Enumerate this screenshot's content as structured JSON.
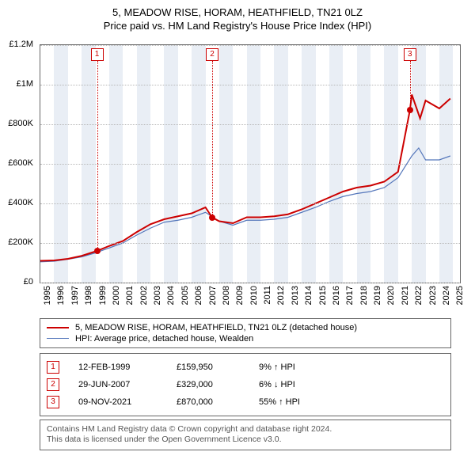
{
  "title": {
    "line1": "5, MEADOW RISE, HORAM, HEATHFIELD, TN21 0LZ",
    "line2": "Price paid vs. HM Land Registry's House Price Index (HPI)",
    "fontsize": 13
  },
  "chart": {
    "type": "line",
    "background_color": "#ffffff",
    "grid_color": "#b8b8b8",
    "band_color": "#e9eef5",
    "ylim": [
      0,
      1200000
    ],
    "ytick_step": 200000,
    "yticks": [
      {
        "v": 0,
        "label": "£0"
      },
      {
        "v": 200000,
        "label": "£200K"
      },
      {
        "v": 400000,
        "label": "£400K"
      },
      {
        "v": 600000,
        "label": "£600K"
      },
      {
        "v": 800000,
        "label": "£800K"
      },
      {
        "v": 1000000,
        "label": "£1M"
      },
      {
        "v": 1200000,
        "label": "£1.2M"
      }
    ],
    "xlim": [
      1995,
      2025.5
    ],
    "xticks": [
      1995,
      1996,
      1997,
      1998,
      1999,
      2000,
      2001,
      2002,
      2003,
      2004,
      2005,
      2006,
      2007,
      2008,
      2009,
      2010,
      2011,
      2012,
      2013,
      2014,
      2015,
      2016,
      2017,
      2018,
      2019,
      2020,
      2021,
      2022,
      2023,
      2024,
      2025
    ],
    "series": [
      {
        "name": "property",
        "label": "5, MEADOW RISE, HORAM, HEATHFIELD, TN21 0LZ (detached house)",
        "color": "#cc0000",
        "width": 2,
        "points": [
          [
            1995,
            110000
          ],
          [
            1996,
            112000
          ],
          [
            1997,
            120000
          ],
          [
            1998,
            135000
          ],
          [
            1999.12,
            159950
          ],
          [
            2000,
            185000
          ],
          [
            2001,
            210000
          ],
          [
            2002,
            255000
          ],
          [
            2003,
            295000
          ],
          [
            2004,
            320000
          ],
          [
            2005,
            335000
          ],
          [
            2006,
            350000
          ],
          [
            2007,
            380000
          ],
          [
            2007.49,
            329000
          ],
          [
            2008,
            310000
          ],
          [
            2009,
            300000
          ],
          [
            2010,
            330000
          ],
          [
            2011,
            330000
          ],
          [
            2012,
            335000
          ],
          [
            2013,
            345000
          ],
          [
            2014,
            370000
          ],
          [
            2015,
            400000
          ],
          [
            2016,
            430000
          ],
          [
            2017,
            460000
          ],
          [
            2018,
            480000
          ],
          [
            2019,
            490000
          ],
          [
            2020,
            510000
          ],
          [
            2021,
            560000
          ],
          [
            2021.86,
            870000
          ],
          [
            2022,
            950000
          ],
          [
            2022.6,
            830000
          ],
          [
            2023,
            920000
          ],
          [
            2024,
            880000
          ],
          [
            2024.8,
            930000
          ]
        ]
      },
      {
        "name": "hpi",
        "label": "HPI: Average price, detached house, Wealden",
        "color": "#5577bb",
        "width": 1.2,
        "points": [
          [
            1995,
            105000
          ],
          [
            1996,
            108000
          ],
          [
            1997,
            118000
          ],
          [
            1998,
            130000
          ],
          [
            1999,
            150000
          ],
          [
            2000,
            175000
          ],
          [
            2001,
            200000
          ],
          [
            2002,
            240000
          ],
          [
            2003,
            275000
          ],
          [
            2004,
            305000
          ],
          [
            2005,
            315000
          ],
          [
            2006,
            330000
          ],
          [
            2007,
            355000
          ],
          [
            2008,
            310000
          ],
          [
            2009,
            290000
          ],
          [
            2010,
            315000
          ],
          [
            2011,
            315000
          ],
          [
            2012,
            320000
          ],
          [
            2013,
            330000
          ],
          [
            2014,
            355000
          ],
          [
            2015,
            380000
          ],
          [
            2016,
            410000
          ],
          [
            2017,
            435000
          ],
          [
            2018,
            450000
          ],
          [
            2019,
            460000
          ],
          [
            2020,
            480000
          ],
          [
            2021,
            530000
          ],
          [
            2022,
            640000
          ],
          [
            2022.5,
            680000
          ],
          [
            2023,
            620000
          ],
          [
            2024,
            620000
          ],
          [
            2024.8,
            640000
          ]
        ]
      }
    ],
    "sale_markers": [
      {
        "n": "1",
        "x": 1999.12,
        "y": 159950
      },
      {
        "n": "2",
        "x": 2007.49,
        "y": 329000
      },
      {
        "n": "3",
        "x": 2021.86,
        "y": 870000
      }
    ]
  },
  "legend": {
    "rows": [
      {
        "color": "#cc0000",
        "label": "5, MEADOW RISE, HORAM, HEATHFIELD, TN21 0LZ (detached house)"
      },
      {
        "color": "#5577bb",
        "label": "HPI: Average price, detached house, Wealden"
      }
    ]
  },
  "sales": [
    {
      "n": "1",
      "date": "12-FEB-1999",
      "price": "£159,950",
      "pct": "9% ↑ HPI"
    },
    {
      "n": "2",
      "date": "29-JUN-2007",
      "price": "£329,000",
      "pct": "6% ↓ HPI"
    },
    {
      "n": "3",
      "date": "09-NOV-2021",
      "price": "£870,000",
      "pct": "55% ↑ HPI"
    }
  ],
  "footer": {
    "line1": "Contains HM Land Registry data © Crown copyright and database right 2024.",
    "line2": "This data is licensed under the Open Government Licence v3.0."
  }
}
